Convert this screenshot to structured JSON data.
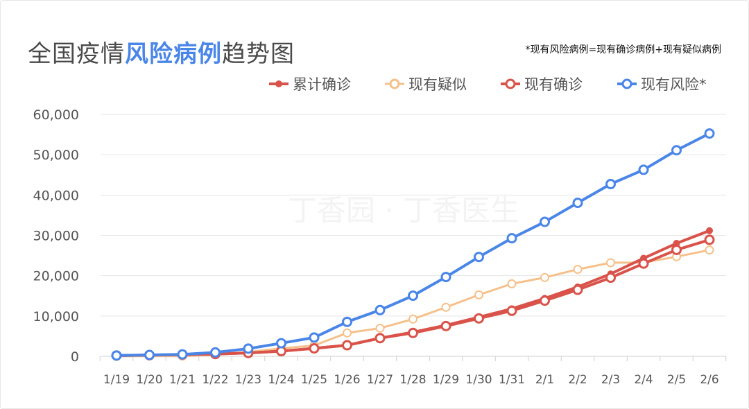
{
  "title": {
    "prefix": "全国疫情",
    "highlight": "风险病例",
    "suffix": "趋势图"
  },
  "note": "*现有风险病例=现有确诊病例+现有疑似病例",
  "watermark": "丁香园 · 丁香医生",
  "colors": {
    "cumulative": "#d9534a",
    "suspected": "#f5c08a",
    "current": "#d9534a",
    "risk": "#4a86e8",
    "grid": "#e5e5e5",
    "axis": "#cfcfcf"
  },
  "chart_data": {
    "type": "line",
    "categories": [
      "1/19",
      "1/20",
      "1/21",
      "1/22",
      "1/23",
      "1/24",
      "1/25",
      "1/26",
      "1/27",
      "1/28",
      "1/29",
      "1/30",
      "1/31",
      "2/1",
      "2/2",
      "2/3",
      "2/4",
      "2/5",
      "2/6"
    ],
    "ylim": [
      0,
      60000
    ],
    "yticks": [
      0,
      10000,
      20000,
      30000,
      40000,
      50000,
      60000
    ],
    "ytick_labels": [
      "0",
      "10,000",
      "20,000",
      "30,000",
      "40,000",
      "50,000",
      "60,000"
    ],
    "grid": true,
    "legend_position": "top",
    "series": [
      {
        "key": "cumulative",
        "name": "累计确诊",
        "marker": "dot",
        "values": [
          198,
          291,
          440,
          571,
          830,
          1287,
          1975,
          2744,
          4515,
          5974,
          7711,
          9692,
          11791,
          14380,
          17205,
          20438,
          24324,
          28018,
          31161
        ]
      },
      {
        "key": "suspected",
        "name": "现有疑似",
        "marker": "ring",
        "values": [
          0,
          54,
          37,
          393,
          1072,
          1965,
          2684,
          5794,
          6973,
          9239,
          12167,
          15238,
          17988,
          19544,
          21558,
          23214,
          23260,
          24702,
          26359
        ]
      },
      {
        "key": "current",
        "name": "现有确诊",
        "marker": "ring",
        "values": [
          198,
          291,
          440,
          571,
          830,
          1287,
          1975,
          2744,
          4500,
          5800,
          7500,
          9400,
          11300,
          13800,
          16500,
          19500,
          23000,
          26400,
          28900
        ]
      },
      {
        "key": "risk",
        "name": "现有风险*",
        "marker": "ring",
        "values": [
          198,
          345,
          477,
          964,
          1902,
          3252,
          4659,
          8538,
          11473,
          15039,
          19667,
          24638,
          29288,
          33344,
          38058,
          42714,
          46260,
          51102,
          55259
        ]
      }
    ]
  }
}
